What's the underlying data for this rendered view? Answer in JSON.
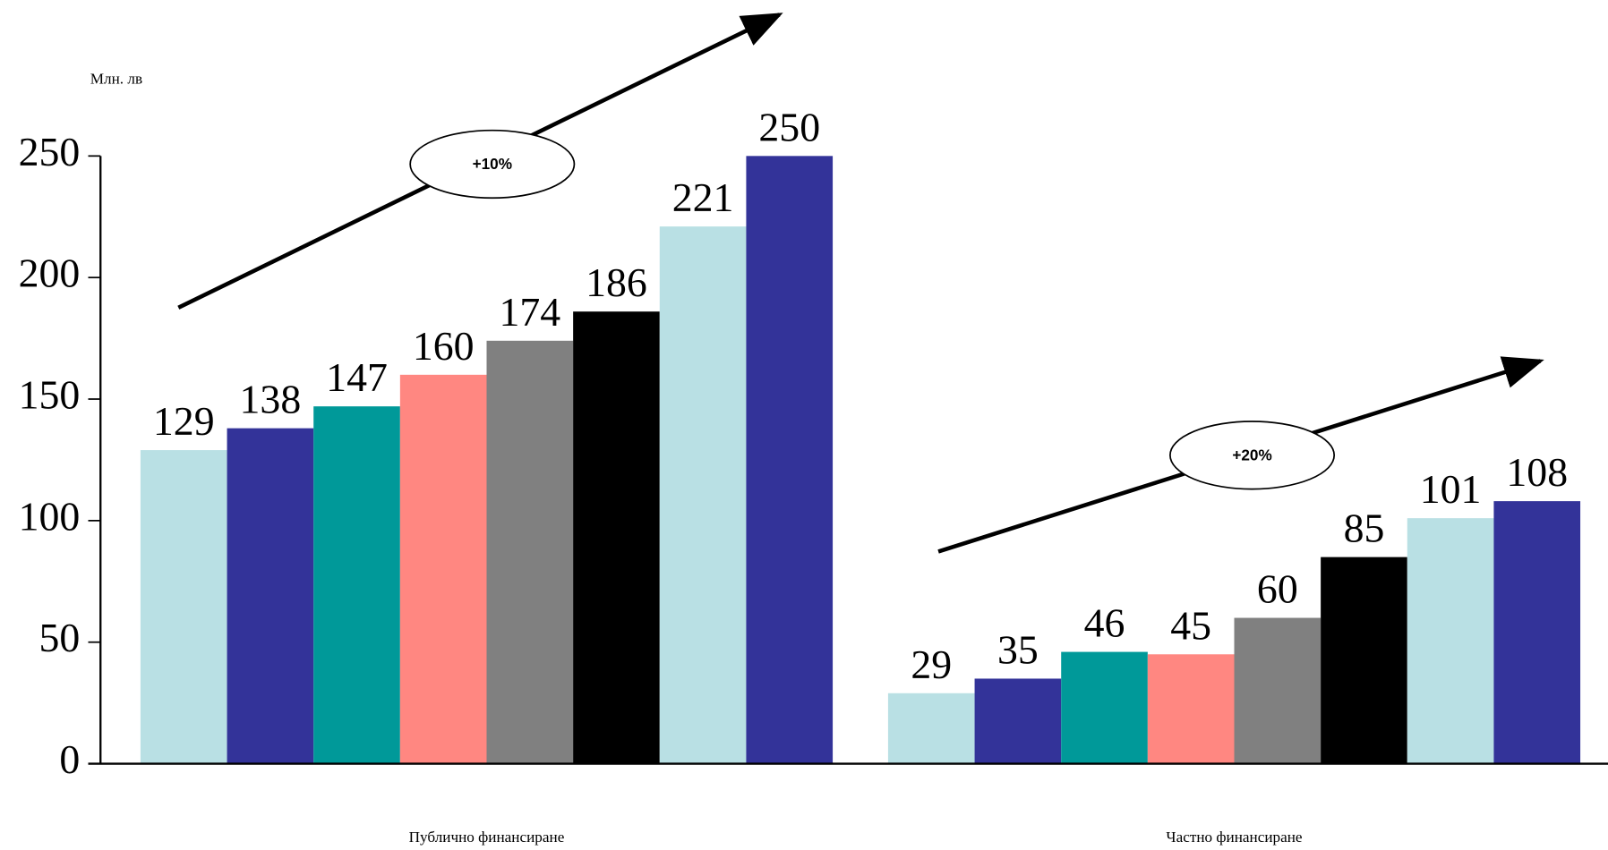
{
  "chart_data": {
    "type": "bar",
    "y_label": "Млн. лв",
    "categories": [
      "Публично финансиране",
      "Частно финансиране"
    ],
    "series": [
      {
        "color": "#b9e0e4",
        "values": [
          129,
          29
        ]
      },
      {
        "color": "#333399",
        "values": [
          138,
          35
        ]
      },
      {
        "color": "#009999",
        "values": [
          147,
          46
        ]
      },
      {
        "color": "#ff8781",
        "values": [
          160,
          45
        ]
      },
      {
        "color": "#808080",
        "values": [
          174,
          60
        ]
      },
      {
        "color": "#000000",
        "values": [
          186,
          85
        ]
      },
      {
        "color": "#b9e0e4",
        "values": [
          221,
          101
        ]
      },
      {
        "color": "#333399",
        "values": [
          250,
          108
        ]
      }
    ],
    "annotations": [
      "+10%",
      "+20%"
    ],
    "ylim": [
      0,
      250
    ],
    "yticks": [
      0,
      50,
      100,
      150,
      200,
      250
    ]
  }
}
